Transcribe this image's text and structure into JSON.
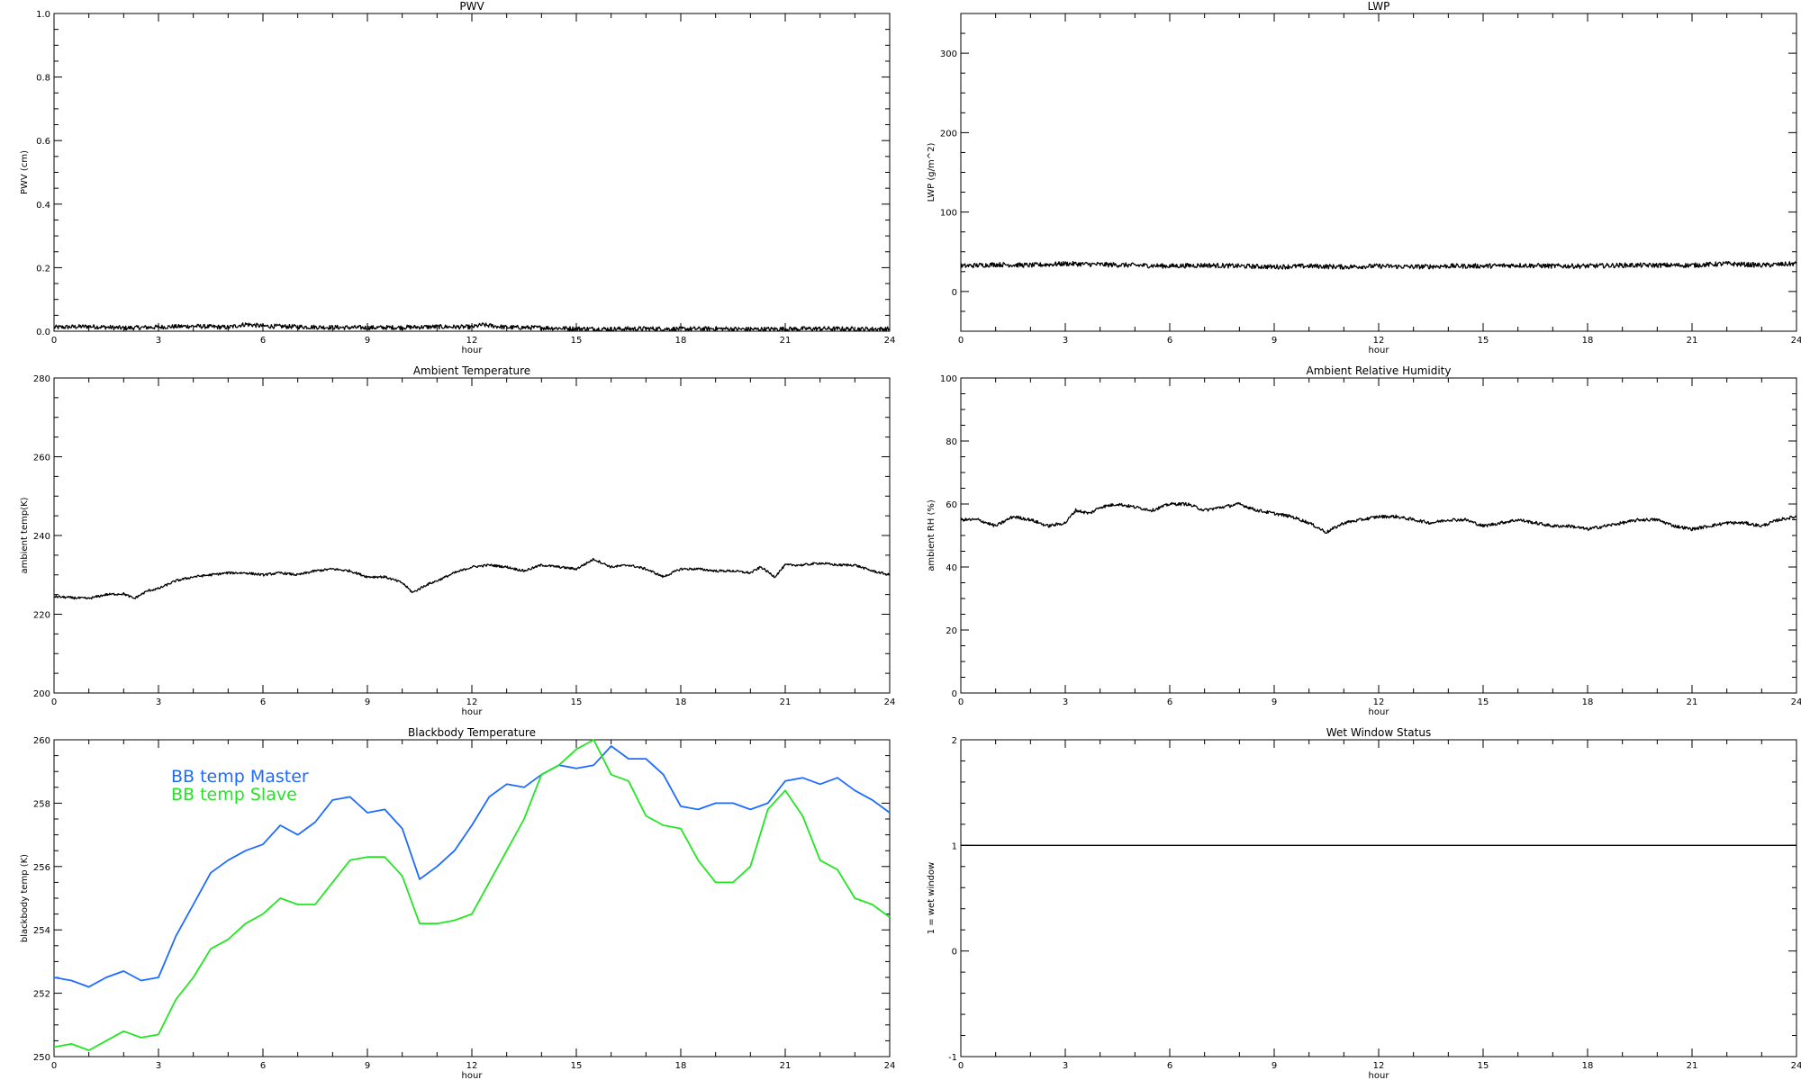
{
  "chart_data": [
    {
      "id": "pwv",
      "type": "line",
      "title": "PWV",
      "xlabel": "hour",
      "ylabel": "PWV (cm)",
      "xlim": [
        0,
        24
      ],
      "ylim": [
        0.0,
        1.0
      ],
      "xticks": [
        0,
        3,
        6,
        9,
        12,
        15,
        18,
        21,
        24
      ],
      "yticks": [
        "0.0",
        "0.2",
        "0.4",
        "0.6",
        "0.8",
        "1.0"
      ],
      "series": [
        {
          "color": "#000000",
          "noise": 0.007,
          "x": [
            0,
            1,
            2,
            3,
            4,
            5,
            5.5,
            6,
            7,
            8,
            9,
            10,
            11,
            12,
            12.3,
            13,
            14,
            15,
            16,
            17,
            18,
            19,
            20,
            21,
            22,
            23,
            24
          ],
          "y": [
            0.012,
            0.015,
            0.01,
            0.013,
            0.016,
            0.012,
            0.022,
            0.016,
            0.014,
            0.012,
            0.011,
            0.012,
            0.014,
            0.013,
            0.02,
            0.012,
            0.011,
            0.008,
            0.007,
            0.008,
            0.007,
            0.008,
            0.006,
            0.007,
            0.008,
            0.007,
            0.007
          ]
        }
      ]
    },
    {
      "id": "lwp",
      "type": "line",
      "title": "LWP",
      "xlabel": "hour",
      "ylabel": "LWP (g/m^2)",
      "xlim": [
        0,
        24
      ],
      "ylim": [
        -50,
        350
      ],
      "xticks": [
        0,
        3,
        6,
        9,
        12,
        15,
        18,
        21,
        24
      ],
      "yticks": [
        0,
        100,
        200,
        300
      ],
      "series": [
        {
          "color": "#000000",
          "noise": 3,
          "x": [
            0,
            1,
            2,
            3,
            4,
            5,
            6,
            7,
            8,
            9,
            10,
            11,
            12,
            13,
            14,
            15,
            16,
            17,
            18,
            19,
            20,
            21,
            22,
            23,
            24
          ],
          "y": [
            32,
            34,
            33,
            35,
            34,
            33,
            32,
            33,
            32,
            31,
            32,
            31,
            32,
            31,
            32,
            32,
            33,
            32,
            32,
            33,
            33,
            33,
            35,
            33,
            35
          ]
        }
      ]
    },
    {
      "id": "ambient-temperature",
      "type": "line",
      "title": "Ambient Temperature",
      "xlabel": "hour",
      "ylabel": "ambient temp(K)",
      "xlim": [
        0,
        24
      ],
      "ylim": [
        200,
        280
      ],
      "xticks": [
        0,
        3,
        6,
        9,
        12,
        15,
        18,
        21,
        24
      ],
      "yticks": [
        200,
        220,
        240,
        260,
        280
      ],
      "series": [
        {
          "color": "#000000",
          "noise": 0.3,
          "x": [
            0,
            0.5,
            1,
            1.5,
            2,
            2.3,
            2.7,
            3,
            3.5,
            4,
            4.5,
            5,
            5.5,
            6,
            6.5,
            7,
            7.5,
            8,
            8.5,
            9,
            9.5,
            10,
            10.3,
            10.7,
            11,
            11.5,
            12,
            12.5,
            13,
            13.5,
            14,
            14.5,
            15,
            15.5,
            16,
            16.5,
            17,
            17.5,
            18,
            18.5,
            19,
            19.5,
            20,
            20.3,
            20.7,
            21,
            21.5,
            22,
            22.5,
            23,
            23.5,
            24
          ],
          "y": [
            224.5,
            224.2,
            224.0,
            225.0,
            225.2,
            224.0,
            226.0,
            226.5,
            228.5,
            229.5,
            230.0,
            230.5,
            230.5,
            230.0,
            230.5,
            230.0,
            231.0,
            231.5,
            231.0,
            229.5,
            229.5,
            228.0,
            225.5,
            227.5,
            228.5,
            230.5,
            232.0,
            232.5,
            232.0,
            231.0,
            232.5,
            232.0,
            231.5,
            234.0,
            232.0,
            232.5,
            231.5,
            229.5,
            231.5,
            231.5,
            231.0,
            231.0,
            230.5,
            232.0,
            229.5,
            232.5,
            232.5,
            233.0,
            232.5,
            232.5,
            231.0,
            230.0
          ]
        }
      ]
    },
    {
      "id": "ambient-relative-humidity",
      "type": "line",
      "title": "Ambient Relative Humidity",
      "xlabel": "hour",
      "ylabel": "ambient RH (%)",
      "xlim": [
        0,
        24
      ],
      "ylim": [
        0,
        100
      ],
      "xticks": [
        0,
        3,
        6,
        9,
        12,
        15,
        18,
        21,
        24
      ],
      "yticks": [
        0,
        20,
        40,
        60,
        80,
        100
      ],
      "series": [
        {
          "color": "#000000",
          "noise": 0.5,
          "x": [
            0,
            0.5,
            1,
            1.5,
            2,
            2.5,
            3,
            3.3,
            3.7,
            4,
            4.5,
            5,
            5.5,
            6,
            6.5,
            7,
            7.5,
            8,
            8.5,
            9,
            9.5,
            10,
            10.5,
            11,
            11.5,
            12,
            12.5,
            13,
            13.5,
            14,
            14.5,
            15,
            15.5,
            16,
            16.5,
            17,
            17.5,
            18,
            18.5,
            19,
            19.5,
            20,
            20.5,
            21,
            21.5,
            22,
            22.5,
            23,
            23.5,
            24
          ],
          "y": [
            55,
            55,
            53,
            56,
            55,
            53,
            54,
            58,
            57,
            59,
            60,
            59,
            58,
            60,
            60,
            58,
            59,
            60,
            58,
            57,
            56,
            54,
            51,
            54,
            55,
            56,
            56,
            55,
            54,
            55,
            55,
            53,
            54,
            55,
            54,
            53,
            53,
            52,
            53,
            54,
            55,
            55,
            53,
            52,
            53,
            54,
            54,
            53,
            55,
            56
          ]
        }
      ]
    },
    {
      "id": "blackbody-temperature",
      "type": "line",
      "title": "Blackbody Temperature",
      "xlabel": "hour",
      "ylabel": "blackbody temp (K)",
      "xlim": [
        0,
        24
      ],
      "ylim": [
        250,
        260
      ],
      "xticks": [
        0,
        3,
        6,
        9,
        12,
        15,
        18,
        21,
        24
      ],
      "yticks": [
        250,
        252,
        254,
        256,
        258,
        260
      ],
      "legend": {
        "placement": "top-left"
      },
      "series": [
        {
          "name": "BB temp Master",
          "color": "#1e6bff",
          "noise": 0,
          "x": [
            0,
            0.5,
            1,
            1.5,
            2,
            2.5,
            3,
            3.5,
            4,
            4.5,
            5,
            5.5,
            6,
            6.5,
            7,
            7.5,
            8,
            8.5,
            9,
            9.5,
            10,
            10.5,
            11,
            11.5,
            12,
            12.5,
            13,
            13.5,
            14,
            14.5,
            15,
            15.5,
            16,
            16.5,
            17,
            17.5,
            18,
            18.5,
            19,
            19.5,
            20,
            20.5,
            21,
            21.5,
            22,
            22.5,
            23,
            23.5,
            24
          ],
          "y": [
            252.5,
            252.4,
            252.2,
            252.5,
            252.7,
            252.4,
            252.5,
            253.8,
            254.8,
            255.8,
            256.2,
            256.5,
            256.7,
            257.3,
            257.0,
            257.4,
            258.1,
            258.2,
            257.7,
            257.8,
            257.2,
            255.6,
            256.0,
            256.5,
            257.3,
            258.2,
            258.6,
            258.5,
            258.9,
            259.2,
            259.1,
            259.2,
            259.8,
            259.4,
            259.4,
            258.9,
            257.9,
            257.8,
            258.0,
            258.0,
            257.8,
            258.0,
            258.7,
            258.8,
            258.6,
            258.8,
            258.4,
            258.1,
            257.7
          ]
        },
        {
          "name": "BB temp Slave",
          "color": "#22e622",
          "noise": 0,
          "x": [
            0,
            0.5,
            1,
            1.5,
            2,
            2.5,
            3,
            3.5,
            4,
            4.5,
            5,
            5.5,
            6,
            6.5,
            7,
            7.5,
            8,
            8.5,
            9,
            9.5,
            10,
            10.5,
            11,
            11.5,
            12,
            12.5,
            13,
            13.5,
            14,
            14.5,
            15,
            15.5,
            16,
            16.5,
            17,
            17.5,
            18,
            18.5,
            19,
            19.5,
            20,
            20.5,
            21,
            21.5,
            22,
            22.5,
            23,
            23.5,
            24
          ],
          "y": [
            250.3,
            250.4,
            250.2,
            250.5,
            250.8,
            250.6,
            250.7,
            251.8,
            252.5,
            253.4,
            253.7,
            254.2,
            254.5,
            255.0,
            254.8,
            254.8,
            255.5,
            256.2,
            256.3,
            256.3,
            255.7,
            254.2,
            254.2,
            254.3,
            254.5,
            255.5,
            256.5,
            257.5,
            258.9,
            259.2,
            259.7,
            260.0,
            258.9,
            258.7,
            257.6,
            257.3,
            257.2,
            256.2,
            255.5,
            255.5,
            256.0,
            257.8,
            258.4,
            257.6,
            256.2,
            255.9,
            255.0,
            254.8,
            254.4
          ]
        }
      ]
    },
    {
      "id": "wet-window-status",
      "type": "line",
      "title": "Wet Window Status",
      "xlabel": "hour",
      "ylabel": "1 = wet window",
      "xlim": [
        0,
        24
      ],
      "ylim": [
        -1,
        2
      ],
      "xticks": [
        0,
        3,
        6,
        9,
        12,
        15,
        18,
        21,
        24
      ],
      "yticks": [
        -1,
        0,
        1,
        2
      ],
      "series": [
        {
          "color": "#000000",
          "noise": 0,
          "x": [
            0,
            24
          ],
          "y": [
            1,
            1
          ]
        }
      ]
    }
  ]
}
